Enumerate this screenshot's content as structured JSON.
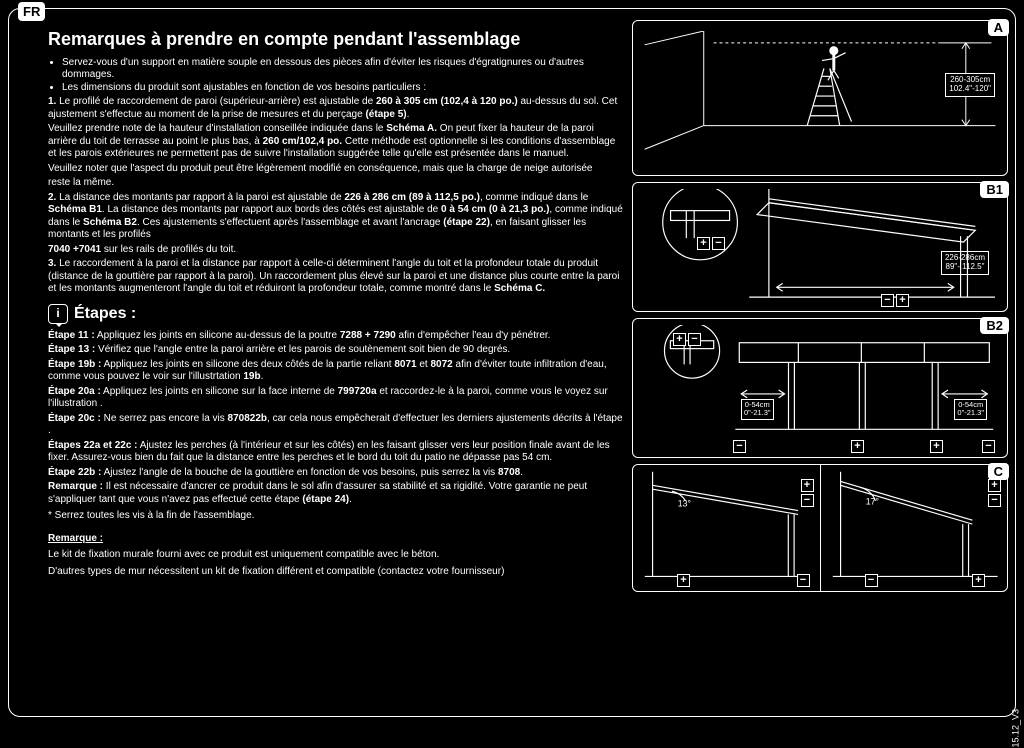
{
  "lang_badge": "FR",
  "title": "Remarques à prendre en compte pendant l'assemblage",
  "bullets": [
    "Servez-vous d'un support en matière souple en dessous des pièces afin d'éviter les risques d'égratignures ou d'autres dommages.",
    "Les dimensions du produit sont ajustables en fonction de vos besoins particuliers :"
  ],
  "body": {
    "p1a": "1.",
    "p1b": " Le profilé de raccordement de paroi (supérieur-arrière) est ajustable de ",
    "p1c": "260 à 305 cm (102,4 à 120 po.)",
    "p1d": " au-dessus du sol. Cet ajustement s'effectue au moment de la prise de mesures et du perçage ",
    "p1e": "(étape 5)",
    "p1f": ".",
    "p2": "Veuillez prendre note de la hauteur d'installation conseillée indiquée dans le ",
    "p2b": "Schéma A.",
    "p2c": " On peut fixer la hauteur de la paroi arrière du toit de terrasse au point le plus bas, à ",
    "p2d": "260 cm/102,4 po.",
    "p2e": " Cette méthode est optionnelle si les conditions d'assemblage et les parois extérieures ne permettent pas de suivre l'installation suggérée telle qu'elle est présentée dans le manuel.",
    "p3": "Veuillez noter que l'aspect du produit peut être légèrement modifié en conséquence, mais que la charge de neige autorisée",
    "p3b": "reste la même.",
    "p4a": "2.",
    "p4b": " La distance des montants par rapport à la paroi est ajustable de ",
    "p4c": "226 à 286 cm (89 à 112,5 po.)",
    "p4d": ", comme indiqué dans le ",
    "p4e": "Schéma B1",
    "p4f": ". La distance des montants par rapport aux bords des côtés est ajustable de ",
    "p4g": "0 à 54 cm (0 à 21,3 po.)",
    "p4h": ", comme indiqué dans le ",
    "p4i": "Schéma B2",
    "p4j": ". Ces ajustements s'effectuent après l'assemblage et avant l'ancrage ",
    "p4k": "(étape 22)",
    "p4l": ", en faisant glisser les montants et les profilés",
    "p4m": "7040 +7041",
    "p4n": " sur les rails de profilés du toit.",
    "p5a": "3.",
    "p5b": " Le raccordement à la paroi et la distance par rapport à celle-ci déterminent l'angle du toit et la profondeur totale du produit (distance de la gouttière par rapport à la paroi). Un raccordement plus élevé sur la paroi et une distance plus courte entre la paroi et les montants augmenteront l'angle du toit et réduiront la profondeur totale, comme montré dans le ",
    "p5c": "Schéma C."
  },
  "steps_title": "Étapes :",
  "steps": [
    {
      "label": "Étape 11 :",
      "text": " Appliquez les joints en silicone au-dessus de la poutre ",
      "b": "7288 + 7290",
      "tail": " afin d'empêcher l'eau d'y pénétrer."
    },
    {
      "label": "Étape 13 :",
      "text": " Vérifiez que l'angle entre la paroi arrière et les parois de soutènement soit bien de 90 degrés."
    },
    {
      "label": "Étape 19b :",
      "text": " Appliquez les joints en silicone des deux côtés de la partie reliant ",
      "b": "8071",
      "mid": " et ",
      "b2": "8072",
      "tail": " afin d'éviter toute infiltration d'eau, comme vous pouvez le voir sur l'illustrtation ",
      "b3": "19b",
      "dot": "."
    },
    {
      "label": "Étape 20a :",
      "text": " Appliquez les joints en silicone sur la face interne de ",
      "b": "7997",
      "tail": " et raccordez-le à la paroi, comme vous le voyez sur l'illustration ",
      "b2": "20a",
      "dot": "."
    },
    {
      "label": "Étape 20c :",
      "text": " Ne serrez pas encore la vis ",
      "b": "8708",
      "tail": ", car cela nous empêcherait d'effectuer les derniers ajustements décrits à l'étape ",
      "b2": "22b",
      "dot": "."
    },
    {
      "label": "Étapes 22a et 22c :",
      "text": " Ajustez les perches (à l'intérieur et sur les côtés) en les faisant glisser vers leur position finale avant de les fixer. Assurez-vous bien du fait que la distance entre les perches et le bord du toit du patio ne dépasse pas 54 cm."
    },
    {
      "label": "Étape 22b :",
      "text": " Ajustez l'angle de la bouche de la gouttière en fonction de vos besoins, puis serrez la vis ",
      "b": "8708",
      "dot": "."
    },
    {
      "label": "Remarque :",
      "text": " Il est nécessaire d'ancrer ce produit dans le sol afin d'assurer sa stabilité et sa rigidité. Votre garantie ne peut s'appliquer tant que vous n'avez pas effectué cette étape ",
      "b": "(étape 24)",
      "dot": "."
    }
  ],
  "footnote": "* Serrez toutes les vis à la fin de l'assemblage.",
  "remarque": {
    "header": "Remarque :",
    "line1": "Le kit de fixation murale fourni avec ce produit est uniquement compatible avec le béton.",
    "line2": "D'autres types de mur nécessitent un kit de fixation différent et compatible (contactez votre fournisseur)"
  },
  "diagrams": {
    "A": {
      "label": "A",
      "dim1": "260-305cm",
      "dim2": "102.4\"-120\""
    },
    "B1": {
      "label": "B1",
      "dim1": "226-286cm",
      "dim2": "89\"- 112.5\""
    },
    "B2": {
      "label": "B2",
      "dimL1": "0-54cm",
      "dimL2": "0\"-21.3\"",
      "dimR1": "0-54cm",
      "dimR2": "0\"-21.3\""
    },
    "C": {
      "label": "C",
      "angle1": "13°",
      "angle2": "17°"
    }
  },
  "version": "15.12_V3",
  "colors": {
    "bg": "#000000",
    "fg": "#ffffff"
  }
}
